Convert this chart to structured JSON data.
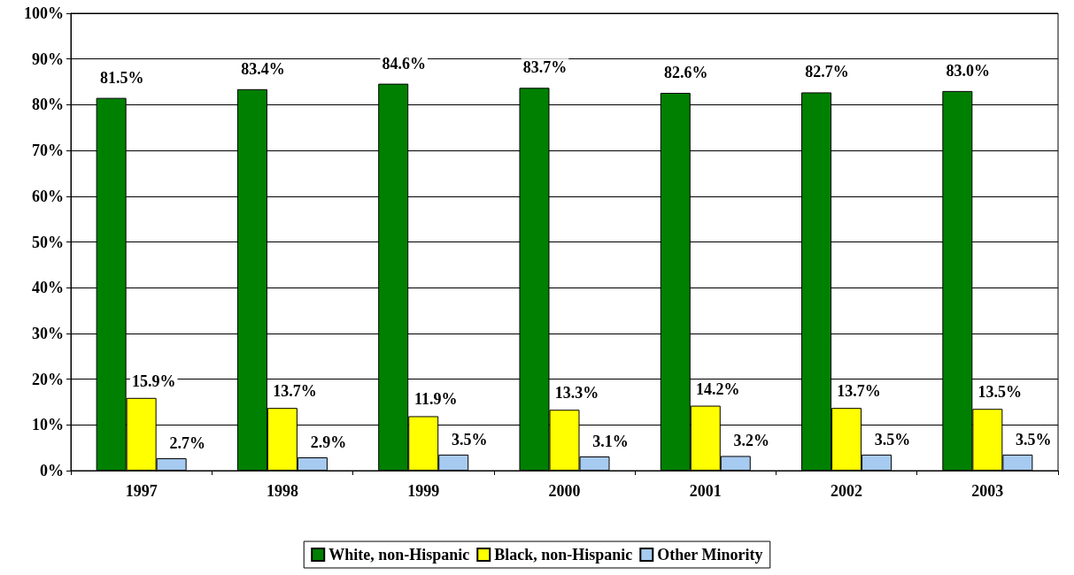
{
  "chart_data": {
    "type": "bar",
    "categories": [
      "1997",
      "1998",
      "1999",
      "2000",
      "2001",
      "2002",
      "2003"
    ],
    "series": [
      {
        "name": "White, non-Hispanic",
        "color": "#008000",
        "values": [
          81.5,
          83.4,
          84.6,
          83.7,
          82.6,
          82.7,
          83.0
        ],
        "value_labels": [
          "81.5%",
          "83.4%",
          "84.6%",
          "83.7%",
          "82.6%",
          "82.7%",
          "83.0%"
        ]
      },
      {
        "name": "Black, non-Hispanic",
        "color": "#ffff00",
        "values": [
          15.9,
          13.7,
          11.9,
          13.3,
          14.2,
          13.7,
          13.5
        ],
        "value_labels": [
          "15.9%",
          "13.7%",
          "11.9%",
          "13.3%",
          "14.2%",
          "13.7%",
          "13.5%"
        ]
      },
      {
        "name": "Other Minority",
        "color": "#a6caf0",
        "values": [
          2.7,
          2.9,
          3.5,
          3.1,
          3.2,
          3.5,
          3.5
        ],
        "value_labels": [
          "2.7%",
          "2.9%",
          "3.5%",
          "3.1%",
          "3.2%",
          "3.5%",
          "3.5%"
        ]
      }
    ],
    "ylim": [
      0,
      100
    ],
    "yticks": [
      {
        "value": 0,
        "label": "0%"
      },
      {
        "value": 10,
        "label": "10%"
      },
      {
        "value": 20,
        "label": "20%"
      },
      {
        "value": 30,
        "label": "30%"
      },
      {
        "value": 40,
        "label": "40%"
      },
      {
        "value": 50,
        "label": "50%"
      },
      {
        "value": 60,
        "label": "60%"
      },
      {
        "value": 70,
        "label": "70%"
      },
      {
        "value": 80,
        "label": "80%"
      },
      {
        "value": 90,
        "label": "90%"
      },
      {
        "value": 100,
        "label": "100%"
      }
    ],
    "grid": "y",
    "legend": "bottom"
  }
}
